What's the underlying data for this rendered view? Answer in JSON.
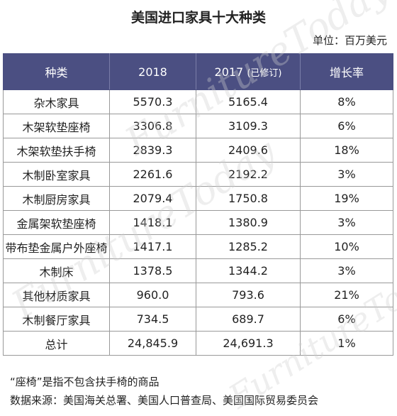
{
  "title": "美国进口家具十大种类",
  "unit": "单位：百万美元",
  "watermark": "FurnitureToday",
  "table": {
    "headers": [
      "种类",
      "2018",
      "2017",
      "(已修订)",
      "增长率"
    ],
    "rows": [
      [
        "杂木家具",
        "5570.3",
        "5165.4",
        "8%"
      ],
      [
        "木架软垫座椅",
        "3306.8",
        "3109.3",
        "6%"
      ],
      [
        "木架软垫扶手椅",
        "2839.3",
        "2409.6",
        "18%"
      ],
      [
        "木制卧室家具",
        "2261.6",
        "2192.2",
        "3%"
      ],
      [
        "木制厨房家具",
        "2079.4",
        "1750.8",
        "19%"
      ],
      [
        "金属架软垫座椅",
        "1418.1",
        "1380.9",
        "3%"
      ],
      [
        "带布垫金属户外座椅",
        "1417.1",
        "1285.2",
        "10%"
      ],
      [
        "木制床",
        "1378.5",
        "1344.2",
        "3%"
      ],
      [
        "其他材质家具",
        "960.0",
        "793.6",
        "21%"
      ],
      [
        "木制餐厅家具",
        "734.5",
        "689.7",
        "6%"
      ],
      [
        "总计",
        "24,845.9",
        "24,691.3",
        "1%"
      ]
    ]
  },
  "note": "“座椅”是指不包含扶手椅的商品",
  "source": "数据来源：美国海关总署、美国人口普查局、美国国际贸易委员会"
}
